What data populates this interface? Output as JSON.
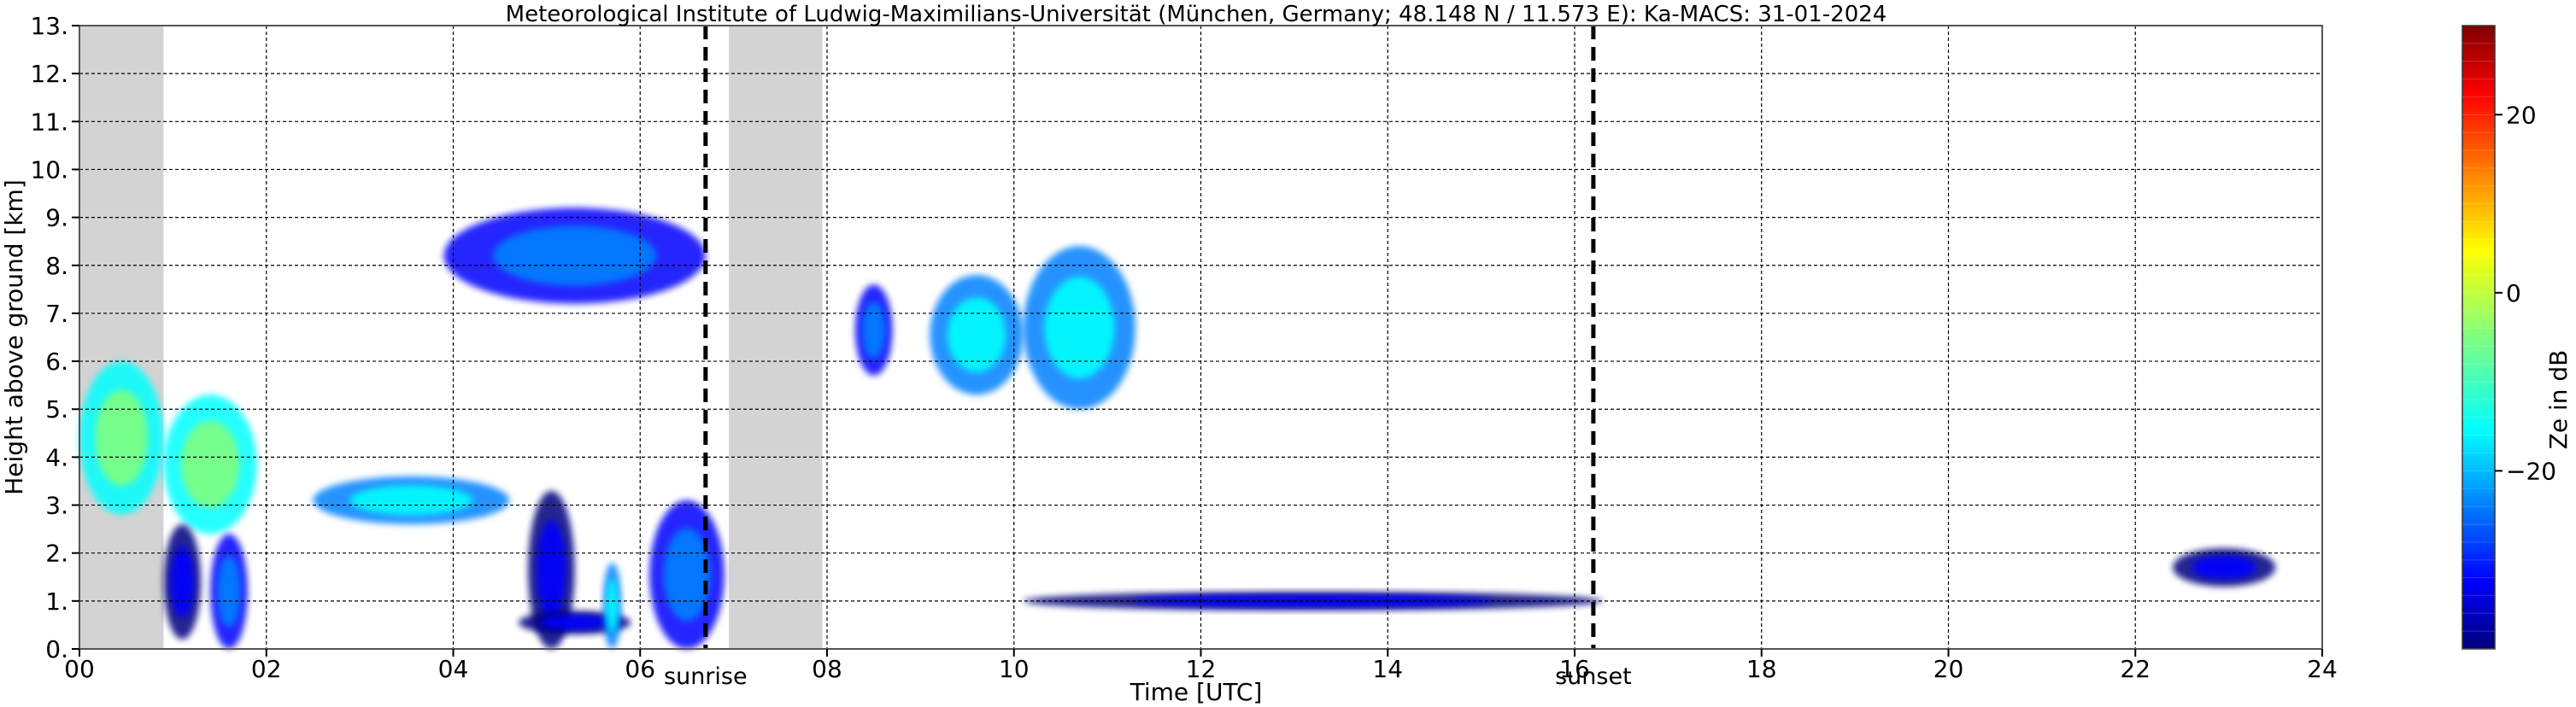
{
  "chart_data": {
    "type": "heatmap",
    "title": "Meteorological Institute of Ludwig-Maximilians-Universität (München, Germany; 48.148 N / 11.573 E):    Ka-MACS: 31-01-2024",
    "xlabel": "Time [UTC]",
    "ylabel": "Height above ground [km]",
    "xlim": [
      0,
      24
    ],
    "ylim": [
      0,
      13
    ],
    "x_ticks": [
      0,
      2,
      4,
      6,
      8,
      10,
      12,
      14,
      16,
      18,
      20,
      22,
      24
    ],
    "x_tick_labels": [
      "00",
      "02",
      "04",
      "06",
      "08",
      "10",
      "12",
      "14",
      "16",
      "18",
      "20",
      "22",
      "24"
    ],
    "y_ticks": [
      0,
      1,
      2,
      3,
      4,
      5,
      6,
      7,
      8,
      9,
      10,
      11,
      12,
      13
    ],
    "y_tick_labels": [
      "0.",
      "1.",
      "2.",
      "3.",
      "4.",
      "5.",
      "6.",
      "7.",
      "8.",
      "9.",
      "10.",
      "11.",
      "12.",
      "13."
    ],
    "grid": true,
    "missing_data_intervals": [
      [
        0.0,
        0.9
      ],
      [
        6.95,
        7.95
      ]
    ],
    "vertical_markers": [
      {
        "label": "sunrise",
        "x": 6.7
      },
      {
        "label": "sunset",
        "x": 16.2
      }
    ],
    "colorbar": {
      "label": "Ze in dB",
      "range": [
        -40,
        30
      ],
      "ticks": [
        20,
        0,
        -20
      ],
      "tick_labels": [
        "20",
        "0",
        "−20"
      ],
      "colormap": "jet"
    },
    "echoes": [
      {
        "t0": 0.0,
        "t1": 0.9,
        "h0": 2.8,
        "h1": 6.0,
        "ze": -8
      },
      {
        "t0": 0.9,
        "t1": 1.9,
        "h0": 2.4,
        "h1": 5.3,
        "ze": -6
      },
      {
        "t0": 0.9,
        "t1": 1.3,
        "h0": 0.2,
        "h1": 2.6,
        "ze": -28
      },
      {
        "t0": 1.4,
        "t1": 1.8,
        "h0": 0.0,
        "h1": 2.4,
        "ze": -26
      },
      {
        "t0": 2.5,
        "t1": 4.6,
        "h0": 2.6,
        "h1": 3.6,
        "ze": -16
      },
      {
        "t0": 3.9,
        "t1": 6.7,
        "h0": 7.2,
        "h1": 9.2,
        "ze": -20
      },
      {
        "t0": 4.8,
        "t1": 5.3,
        "h0": 0.0,
        "h1": 3.3,
        "ze": -32
      },
      {
        "t0": 4.7,
        "t1": 5.9,
        "h0": 0.3,
        "h1": 0.8,
        "ze": -30
      },
      {
        "t0": 5.6,
        "t1": 5.8,
        "h0": 0.0,
        "h1": 1.8,
        "ze": -14
      },
      {
        "t0": 6.1,
        "t1": 6.9,
        "h0": 0.0,
        "h1": 3.1,
        "ze": -26
      },
      {
        "t0": 8.3,
        "t1": 8.7,
        "h0": 5.7,
        "h1": 7.6,
        "ze": -24
      },
      {
        "t0": 9.1,
        "t1": 10.1,
        "h0": 5.3,
        "h1": 7.8,
        "ze": -16
      },
      {
        "t0": 10.1,
        "t1": 11.3,
        "h0": 5.0,
        "h1": 8.4,
        "ze": -12
      },
      {
        "t0": 10.1,
        "t1": 16.3,
        "h0": 0.8,
        "h1": 1.2,
        "ze": -34
      },
      {
        "t0": 22.4,
        "t1": 23.5,
        "h0": 1.3,
        "h1": 2.1,
        "ze": -30
      }
    ]
  }
}
